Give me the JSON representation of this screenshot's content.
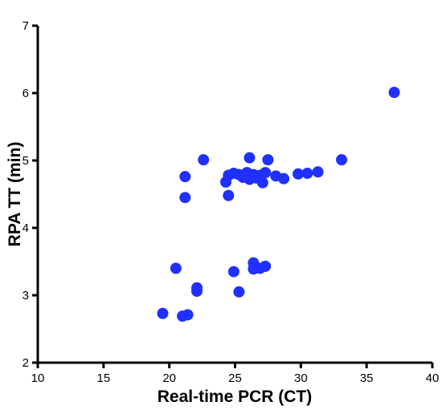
{
  "chart_data": {
    "type": "scatter",
    "title": "",
    "xlabel": "Real-time PCR (CT)",
    "ylabel": "RPA TT (min)",
    "xlim": [
      10,
      40
    ],
    "ylim": [
      2,
      7
    ],
    "x_ticks": [
      10,
      15,
      20,
      25,
      30,
      35,
      40
    ],
    "y_ticks": [
      2,
      3,
      4,
      5,
      6,
      7
    ],
    "grid": false,
    "legend": "none",
    "marker_color": "#1f30ff",
    "series": [
      {
        "points": [
          [
            19.5,
            2.73
          ],
          [
            21.0,
            2.69
          ],
          [
            21.4,
            2.71
          ],
          [
            22.1,
            3.11
          ],
          [
            22.1,
            3.06
          ],
          [
            25.3,
            3.05
          ],
          [
            20.5,
            3.4
          ],
          [
            24.9,
            3.35
          ],
          [
            26.4,
            3.48
          ],
          [
            26.4,
            3.39
          ],
          [
            26.9,
            3.4
          ],
          [
            27.3,
            3.43
          ],
          [
            21.2,
            4.76
          ],
          [
            21.2,
            4.45
          ],
          [
            22.6,
            5.01
          ],
          [
            24.3,
            4.68
          ],
          [
            24.5,
            4.78
          ],
          [
            24.5,
            4.48
          ],
          [
            24.9,
            4.81
          ],
          [
            25.3,
            4.79
          ],
          [
            25.6,
            4.75
          ],
          [
            25.9,
            4.82
          ],
          [
            26.1,
            4.72
          ],
          [
            26.1,
            5.04
          ],
          [
            26.4,
            4.79
          ],
          [
            26.6,
            4.74
          ],
          [
            26.9,
            4.78
          ],
          [
            27.1,
            4.67
          ],
          [
            27.3,
            4.82
          ],
          [
            27.5,
            5.01
          ],
          [
            28.1,
            4.77
          ],
          [
            28.7,
            4.73
          ],
          [
            29.8,
            4.8
          ],
          [
            30.5,
            4.81
          ],
          [
            31.3,
            4.83
          ],
          [
            33.1,
            5.01
          ],
          [
            37.1,
            6.01
          ]
        ]
      }
    ]
  }
}
